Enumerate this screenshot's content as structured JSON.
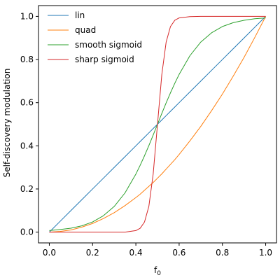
{
  "chart_data": {
    "type": "line",
    "title": "",
    "xlabel": "f",
    "xlabel_subscript": "0",
    "ylabel": "Self-discovery modulation",
    "xlim": [
      -0.05,
      1.05
    ],
    "ylim": [
      -0.05,
      1.05
    ],
    "xticks": [
      0.0,
      0.2,
      0.4,
      0.6,
      0.8,
      1.0
    ],
    "xtick_labels": [
      "0.0",
      "0.2",
      "0.4",
      "0.6",
      "0.8",
      "1.0"
    ],
    "yticks": [
      0.0,
      0.2,
      0.4,
      0.6,
      0.8,
      1.0
    ],
    "ytick_labels": [
      "0.0",
      "0.2",
      "0.4",
      "0.6",
      "0.8",
      "1.0"
    ],
    "grid": false,
    "legend_position": "upper-left",
    "x": [
      0.0,
      0.05,
      0.1,
      0.15,
      0.2,
      0.25,
      0.3,
      0.35,
      0.4,
      0.42,
      0.44,
      0.46,
      0.48,
      0.5,
      0.52,
      0.54,
      0.56,
      0.58,
      0.6,
      0.65,
      0.7,
      0.75,
      0.8,
      0.85,
      0.9,
      0.95,
      1.0
    ],
    "series": [
      {
        "name": "lin",
        "color": "#1f77b4",
        "values": [
          0.0,
          0.05,
          0.1,
          0.15,
          0.2,
          0.25,
          0.3,
          0.35,
          0.4,
          0.42,
          0.44,
          0.46,
          0.48,
          0.5,
          0.52,
          0.54,
          0.56,
          0.58,
          0.6,
          0.65,
          0.7,
          0.75,
          0.8,
          0.85,
          0.9,
          0.95,
          1.0
        ]
      },
      {
        "name": "quad",
        "color": "#ff7f0e",
        "values": [
          0.0,
          0.003,
          0.01,
          0.023,
          0.04,
          0.063,
          0.09,
          0.123,
          0.16,
          0.176,
          0.194,
          0.212,
          0.23,
          0.25,
          0.27,
          0.292,
          0.314,
          0.336,
          0.36,
          0.423,
          0.49,
          0.563,
          0.64,
          0.723,
          0.81,
          0.903,
          1.0
        ]
      },
      {
        "name": "smooth sigmoid",
        "color": "#2ca02c",
        "values": [
          0.007,
          0.012,
          0.018,
          0.029,
          0.047,
          0.076,
          0.119,
          0.182,
          0.269,
          0.31,
          0.354,
          0.401,
          0.45,
          0.5,
          0.55,
          0.599,
          0.646,
          0.69,
          0.731,
          0.818,
          0.881,
          0.924,
          0.953,
          0.971,
          0.982,
          0.989,
          0.993
        ]
      },
      {
        "name": "sharp sigmoid",
        "color": "#d62728",
        "values": [
          0.0,
          0.0,
          0.0,
          0.0,
          0.0,
          0.0,
          0.0,
          0.0,
          0.007,
          0.018,
          0.047,
          0.119,
          0.269,
          0.5,
          0.731,
          0.881,
          0.953,
          0.982,
          0.993,
          0.999,
          1.0,
          1.0,
          1.0,
          1.0,
          1.0,
          1.0,
          1.0
        ]
      }
    ]
  }
}
